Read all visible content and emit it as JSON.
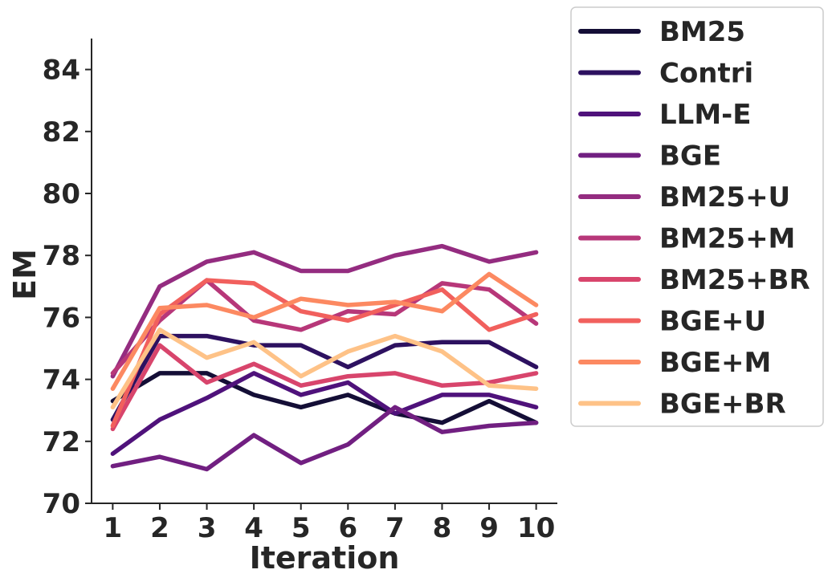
{
  "chart_data": {
    "type": "line",
    "title": "",
    "xlabel": "Iteration",
    "ylabel": "EM",
    "x": [
      1,
      2,
      3,
      4,
      5,
      6,
      7,
      8,
      9,
      10
    ],
    "xticks": [
      "1",
      "2",
      "3",
      "4",
      "5",
      "6",
      "7",
      "8",
      "9",
      "10"
    ],
    "yticks": [
      "70",
      "72",
      "74",
      "76",
      "78",
      "80",
      "82",
      "84"
    ],
    "ylim": [
      70,
      85
    ],
    "xlim": [
      0.55,
      10.45
    ],
    "grid": false,
    "legend_position": "right",
    "series": [
      {
        "name": "BM25",
        "color": "#140e36",
        "values": [
          73.3,
          74.2,
          74.2,
          73.5,
          73.1,
          73.5,
          72.9,
          72.6,
          73.3,
          72.6
        ]
      },
      {
        "name": "Contri",
        "color": "#2d1160",
        "values": [
          72.7,
          75.4,
          75.4,
          75.1,
          75.1,
          74.4,
          75.1,
          75.2,
          75.2,
          74.4
        ]
      },
      {
        "name": "LLM-E",
        "color": "#4f127b",
        "values": [
          71.6,
          72.7,
          73.4,
          74.2,
          73.5,
          73.9,
          72.9,
          73.5,
          73.5,
          73.1
        ]
      },
      {
        "name": "BGE",
        "color": "#711f81",
        "values": [
          71.2,
          71.5,
          71.1,
          72.2,
          71.3,
          71.9,
          73.1,
          72.3,
          72.5,
          72.6
        ]
      },
      {
        "name": "BM25+U",
        "color": "#942c80",
        "values": [
          74.1,
          77.0,
          77.8,
          78.1,
          77.5,
          77.5,
          78.0,
          78.3,
          77.8,
          78.1
        ]
      },
      {
        "name": "BM25+M",
        "color": "#b73779",
        "values": [
          74.2,
          75.9,
          77.2,
          75.9,
          75.6,
          76.2,
          76.1,
          77.1,
          76.9,
          75.8
        ]
      },
      {
        "name": "BM25+BR",
        "color": "#d8456c",
        "values": [
          72.4,
          75.1,
          73.9,
          74.5,
          73.8,
          74.1,
          74.2,
          73.8,
          73.9,
          74.2
        ]
      },
      {
        "name": "BGE+U",
        "color": "#f1605d",
        "values": [
          72.5,
          76.1,
          77.2,
          77.1,
          76.2,
          75.9,
          76.4,
          76.9,
          75.6,
          76.1
        ]
      },
      {
        "name": "BGE+M",
        "color": "#fc8961",
        "values": [
          73.7,
          76.3,
          76.4,
          76.0,
          76.6,
          76.4,
          76.5,
          76.2,
          77.4,
          76.4
        ]
      },
      {
        "name": "BGE+BR",
        "color": "#fec287",
        "values": [
          73.1,
          75.6,
          74.7,
          75.2,
          74.1,
          74.9,
          75.4,
          74.9,
          73.8,
          73.7
        ]
      }
    ]
  }
}
